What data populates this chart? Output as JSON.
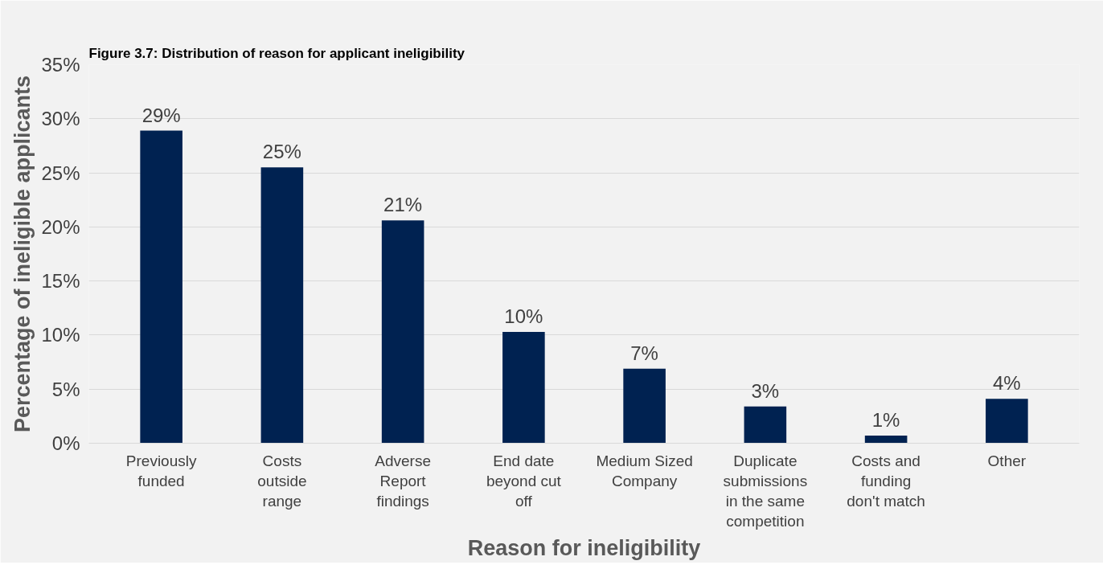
{
  "chart_data": {
    "type": "bar",
    "title": "Figure 3.7: Distribution of reason for applicant ineligibility",
    "xlabel": "Reason for ineligibility",
    "ylabel": "Percentage of ineligible applicants",
    "categories": [
      "Previously funded",
      "Costs outside range",
      "Adverse Report findings",
      "End date beyond cut off",
      "Medium Sized Company",
      "Duplicate submissions in the same competition",
      "Costs and funding don't match",
      "Other"
    ],
    "values": [
      28.9,
      25.5,
      20.6,
      10.3,
      6.9,
      3.4,
      0.7,
      4.1
    ],
    "value_labels": [
      "29%",
      "25%",
      "21%",
      "10%",
      "7%",
      "3%",
      "1%",
      "4%"
    ],
    "color": "#002251",
    "ylim": [
      0,
      35
    ],
    "yticks": [
      {
        "value": 0,
        "label": "0%"
      },
      {
        "value": 5,
        "label": "5%"
      },
      {
        "value": 10,
        "label": "10%"
      },
      {
        "value": 15,
        "label": "15%"
      },
      {
        "value": 20,
        "label": "20%"
      },
      {
        "value": 25,
        "label": "25%"
      },
      {
        "value": 30,
        "label": "30%"
      },
      {
        "value": 35,
        "label": "35%"
      }
    ],
    "grid": "y"
  }
}
